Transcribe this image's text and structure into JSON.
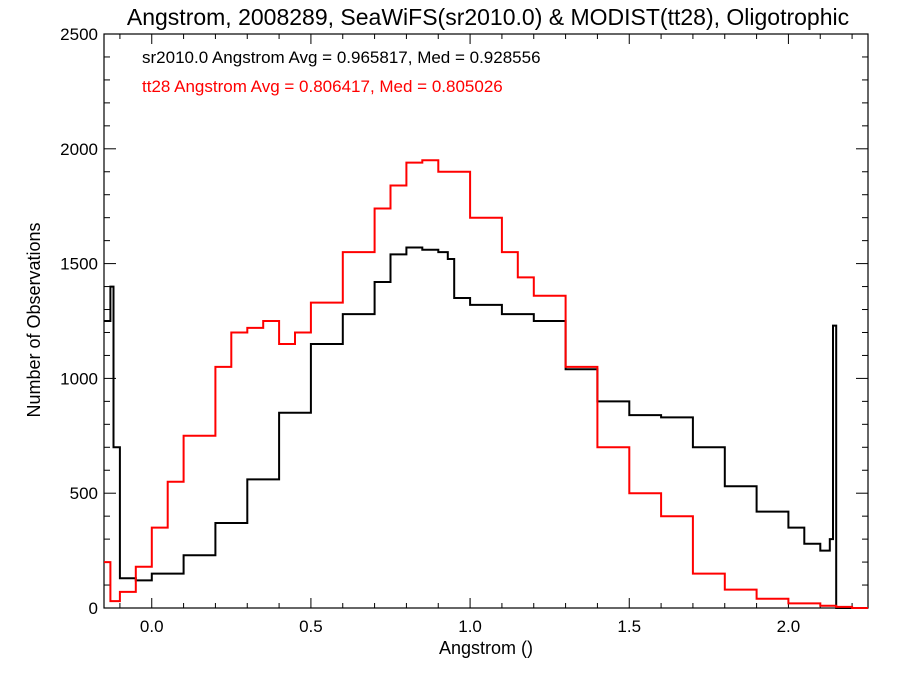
{
  "chart_data": {
    "type": "line",
    "title": "Angstrom, 2008289, SeaWiFS(sr2010.0) & MODIST(tt28), Oligotrophic",
    "xlabel": "Angstrom ()",
    "ylabel": "Number of Observations",
    "xlim": [
      -0.15,
      2.25
    ],
    "ylim": [
      0,
      2500
    ],
    "xticks": [
      0.0,
      0.5,
      1.0,
      1.5,
      2.0
    ],
    "xtick_labels": [
      "0.0",
      "0.5",
      "1.0",
      "1.5",
      "2.0"
    ],
    "yticks": [
      0,
      500,
      1000,
      1500,
      2000,
      2500
    ],
    "ytick_labels": [
      "0",
      "500",
      "1000",
      "1500",
      "2000",
      "2500"
    ],
    "grid": false,
    "annotations": [
      {
        "text": "sr2010.0 Angstrom Avg = 0.965817, Med = 0.928556",
        "color": "#000000"
      },
      {
        "text": "tt28 Angstrom Avg = 0.806417, Med = 0.805026",
        "color": "#ff0000"
      }
    ],
    "series": [
      {
        "color": "#000000",
        "x": [
          -0.15,
          -0.13,
          -0.12,
          -0.1,
          -0.05,
          0.0,
          0.1,
          0.2,
          0.3,
          0.4,
          0.5,
          0.6,
          0.7,
          0.75,
          0.8,
          0.85,
          0.9,
          0.93,
          0.95,
          1.0,
          1.1,
          1.2,
          1.3,
          1.4,
          1.5,
          1.6,
          1.7,
          1.8,
          1.9,
          2.0,
          2.05,
          2.1,
          2.13,
          2.14,
          2.15,
          2.2,
          2.25
        ],
        "y": [
          1250,
          1400,
          700,
          130,
          120,
          150,
          230,
          370,
          560,
          850,
          1150,
          1280,
          1420,
          1540,
          1570,
          1560,
          1550,
          1520,
          1350,
          1320,
          1280,
          1250,
          1040,
          900,
          840,
          830,
          700,
          530,
          420,
          350,
          280,
          250,
          300,
          1230,
          0,
          0,
          0
        ]
      },
      {
        "color": "#ff0000",
        "x": [
          -0.15,
          -0.13,
          -0.1,
          -0.05,
          0.0,
          0.05,
          0.1,
          0.2,
          0.25,
          0.3,
          0.35,
          0.4,
          0.45,
          0.5,
          0.6,
          0.7,
          0.75,
          0.8,
          0.85,
          0.9,
          1.0,
          1.1,
          1.15,
          1.2,
          1.3,
          1.4,
          1.5,
          1.6,
          1.7,
          1.8,
          1.9,
          2.0,
          2.1,
          2.15,
          2.2,
          2.25
        ],
        "y": [
          200,
          30,
          70,
          180,
          350,
          550,
          750,
          1050,
          1200,
          1220,
          1250,
          1150,
          1200,
          1330,
          1550,
          1740,
          1840,
          1940,
          1950,
          1900,
          1700,
          1550,
          1440,
          1360,
          1050,
          700,
          500,
          400,
          150,
          80,
          40,
          20,
          10,
          5,
          0,
          0
        ]
      }
    ]
  }
}
